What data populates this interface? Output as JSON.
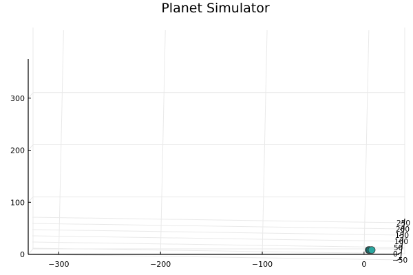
{
  "chart_data": {
    "type": "scatter",
    "title": "Planet Simulator",
    "xlabel": "",
    "ylabel": "",
    "zlabel": "",
    "projection": "3d",
    "grid": true,
    "legend": "none",
    "x_axis": {
      "range": [
        -330,
        40
      ],
      "ticks": [
        -300,
        -200,
        -100,
        0
      ],
      "tick_labels": [
        "−300",
        "−200",
        "−100",
        "0"
      ]
    },
    "y_axis": {
      "range": [
        -50,
        250
      ],
      "ticks": [
        -50,
        0,
        50,
        100,
        150,
        200,
        250
      ],
      "tick_labels": [
        "−50",
        "0",
        "50",
        "100",
        "150",
        "200",
        "250"
      ]
    },
    "z_axis": {
      "range": [
        0,
        375
      ],
      "ticks": [
        0,
        100,
        200,
        300
      ],
      "tick_labels": [
        "0",
        "100",
        "200",
        "300"
      ]
    },
    "series": [
      {
        "points": [
          {
            "x": 4,
            "y": -20,
            "z": 10
          },
          {
            "x": 5,
            "y": -20,
            "z": 10
          },
          {
            "x": 7,
            "y": -20,
            "z": 10
          }
        ]
      }
    ],
    "colors": {
      "marker_outline": "#3a3a3a",
      "marker_light": "#2aa7a0",
      "marker_dark": "#0f7a78"
    }
  }
}
